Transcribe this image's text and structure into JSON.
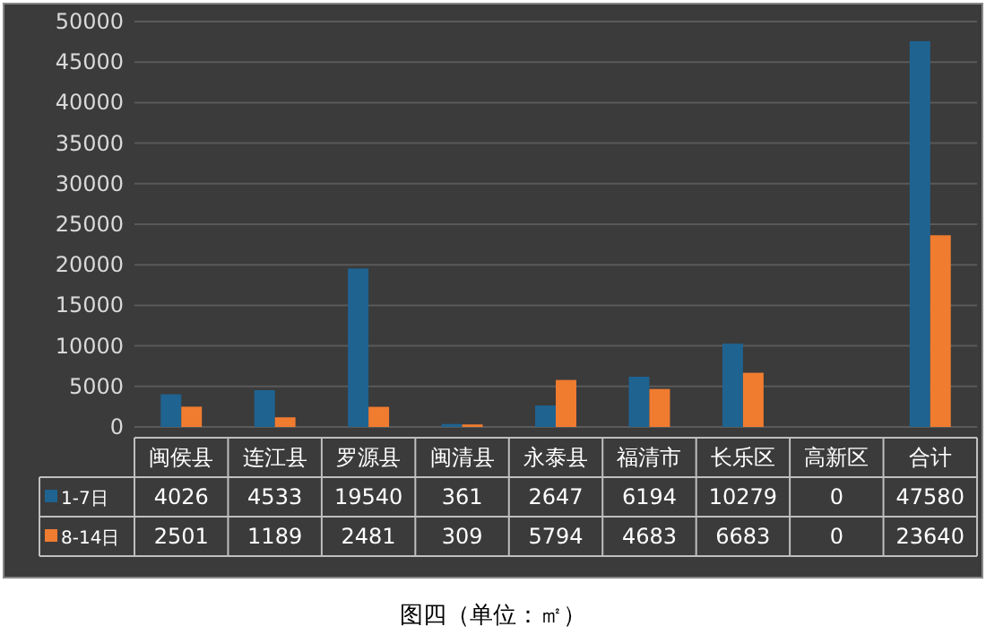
{
  "chart_data": {
    "type": "bar",
    "categories": [
      "闽侯县",
      "连江县",
      "罗源县",
      "闽清县",
      "永泰县",
      "福清市",
      "长乐区",
      "高新区",
      "合计"
    ],
    "series": [
      {
        "name": "1-7日",
        "color": "#1f6391",
        "values": [
          4026,
          4533,
          19540,
          361,
          2647,
          6194,
          10279,
          0,
          47580
        ]
      },
      {
        "name": "8-14日",
        "color": "#f07c30",
        "values": [
          2501,
          1189,
          2481,
          309,
          5794,
          4683,
          6683,
          0,
          23640
        ]
      }
    ],
    "ylim": [
      0,
      50000
    ],
    "yticks": [
      0,
      5000,
      10000,
      15000,
      20000,
      25000,
      30000,
      35000,
      40000,
      45000,
      50000
    ],
    "grid": "y",
    "legend": "bottom",
    "data_labels": true,
    "annotations": [
      "图四（单位：㎡）"
    ]
  }
}
